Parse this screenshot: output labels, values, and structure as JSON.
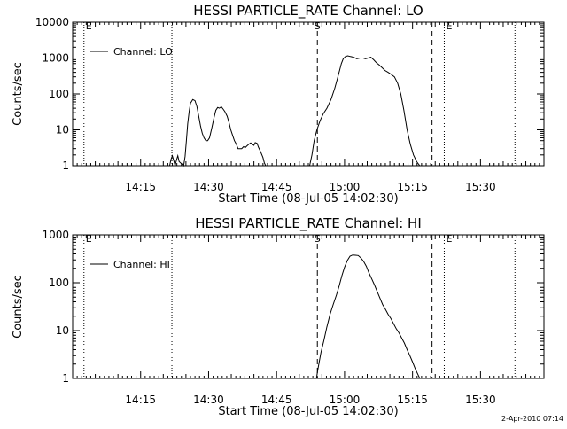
{
  "chart_data": [
    {
      "type": "line",
      "title": "HESSI PARTICLE_RATE Channel: LO",
      "xlabel": "Start Time (08-Jul-05 14:02:30)",
      "ylabel": "Counts/sec",
      "yscale": "log",
      "ylim": [
        1,
        10000
      ],
      "yticks": [
        {
          "value": 1,
          "label": "1"
        },
        {
          "value": 10,
          "label": "10"
        },
        {
          "value": 100,
          "label": "100"
        },
        {
          "value": 1000,
          "label": "1000"
        },
        {
          "value": 10000,
          "label": "10000"
        }
      ],
      "xticks": [
        {
          "minute": 15,
          "label": "14:15"
        },
        {
          "minute": 30,
          "label": "14:30"
        },
        {
          "minute": 45,
          "label": "14:45"
        },
        {
          "minute": 60,
          "label": "15:00"
        },
        {
          "minute": 75,
          "label": "15:15"
        },
        {
          "minute": 90,
          "label": "15:30"
        }
      ],
      "legend": {
        "placement": "top-left",
        "entries": [
          "Channel: LO"
        ]
      },
      "markers": {
        "dotted": [
          {
            "minute": 2.5,
            "label": "E"
          },
          {
            "minute": 21.9,
            "label": ""
          },
          {
            "minute": 82.0,
            "label": "E"
          },
          {
            "minute": 97.6,
            "label": ""
          }
        ],
        "dashed": [
          {
            "minute": 54.0,
            "label": "S"
          },
          {
            "minute": 79.3,
            "label": ""
          }
        ]
      },
      "series": [
        {
          "name": "Channel: LO",
          "x": [
            21.4,
            21.7,
            22.0,
            22.3,
            22.6,
            22.9,
            23.2,
            23.5,
            24.5,
            24.8,
            25.1,
            25.4,
            25.7,
            26.0,
            26.5,
            27.0,
            27.4,
            27.8,
            28.2,
            28.6,
            29.0,
            29.4,
            29.8,
            30.2,
            30.7,
            31.2,
            31.6,
            32.0,
            32.4,
            32.8,
            33.2,
            33.6,
            34.1,
            34.5,
            34.9,
            35.3,
            35.7,
            36.1,
            36.5,
            36.9,
            37.3,
            37.7,
            38.1,
            38.5,
            38.9,
            39.3,
            39.6,
            40.0,
            40.3,
            40.7,
            41.0,
            41.5,
            42.0,
            42.3,
            42.6,
            43.0,
            52.3,
            52.8,
            53.3,
            53.9,
            54.6,
            55.3,
            56.1,
            57.0,
            57.8,
            58.4,
            58.9,
            59.3,
            59.7,
            60.2,
            60.7,
            61.3,
            62.0,
            62.7,
            63.4,
            64.1,
            64.6,
            65.2,
            65.8,
            66.4,
            67.0,
            67.6,
            68.2,
            68.9,
            69.6,
            70.3,
            71.0,
            71.7,
            72.4,
            73.1,
            73.8,
            74.5,
            75.2,
            75.9,
            76.6,
            77.0,
            77.4,
            77.8
          ],
          "y": [
            1.0,
            1.5,
            1.9,
            1.4,
            1.0,
            1.4,
            1.9,
            1.3,
            1.0,
            1.8,
            5.0,
            15.0,
            32.0,
            55.0,
            70.0,
            65.0,
            45.0,
            25.0,
            13.0,
            8.0,
            6.0,
            5.0,
            5.0,
            6.0,
            11.0,
            22.0,
            35.0,
            42.0,
            40.0,
            44.0,
            38.0,
            32.0,
            24.0,
            16.0,
            10.0,
            7.0,
            5.0,
            4.0,
            3.0,
            3.0,
            3.0,
            3.4,
            3.2,
            3.6,
            4.0,
            4.3,
            4.0,
            3.7,
            4.4,
            4.2,
            3.3,
            2.4,
            1.7,
            1.2,
            1.0,
            1.0,
            1.0,
            2.0,
            5.0,
            10.0,
            18.0,
            28.0,
            40.0,
            70.0,
            140.0,
            260.0,
            450.0,
            700.0,
            950.0,
            1100.0,
            1150.0,
            1100.0,
            1050.0,
            950.0,
            1000.0,
            1000.0,
            950.0,
            1000.0,
            1050.0,
            900.0,
            750.0,
            650.0,
            550.0,
            450.0,
            400.0,
            350.0,
            300.0,
            200.0,
            100.0,
            35.0,
            10.0,
            4.0,
            2.0,
            1.3,
            1.0,
            1.0,
            1.0,
            1.0
          ]
        }
      ]
    },
    {
      "type": "line",
      "title": "HESSI PARTICLE_RATE Channel: HI",
      "xlabel": "Start Time (08-Jul-05 14:02:30)",
      "ylabel": "Counts/sec",
      "yscale": "log",
      "ylim": [
        1,
        1000
      ],
      "yticks": [
        {
          "value": 1,
          "label": "1"
        },
        {
          "value": 10,
          "label": "10"
        },
        {
          "value": 100,
          "label": "100"
        },
        {
          "value": 1000,
          "label": "1000"
        }
      ],
      "xticks": [
        {
          "minute": 15,
          "label": "14:15"
        },
        {
          "minute": 30,
          "label": "14:30"
        },
        {
          "minute": 45,
          "label": "14:45"
        },
        {
          "minute": 60,
          "label": "15:00"
        },
        {
          "minute": 75,
          "label": "15:15"
        },
        {
          "minute": 90,
          "label": "15:30"
        }
      ],
      "legend": {
        "placement": "top-left",
        "entries": [
          "Channel: HI"
        ]
      },
      "markers": {
        "dotted": [
          {
            "minute": 2.5,
            "label": "E"
          },
          {
            "minute": 21.9,
            "label": ""
          },
          {
            "minute": 82.0,
            "label": "E"
          },
          {
            "minute": 97.6,
            "label": ""
          }
        ],
        "dashed": [
          {
            "minute": 54.0,
            "label": "S"
          },
          {
            "minute": 79.3,
            "label": ""
          }
        ]
      },
      "series": [
        {
          "name": "Channel: HI",
          "x": [
            53.8,
            54.1,
            54.4,
            54.8,
            55.4,
            56.1,
            56.8,
            57.5,
            58.2,
            58.8,
            59.4,
            60.0,
            60.6,
            61.2,
            61.8,
            62.4,
            63.0,
            63.6,
            64.2,
            64.8,
            65.4,
            66.0,
            66.6,
            67.2,
            67.8,
            68.4,
            69.0,
            69.6,
            70.2,
            70.8,
            71.4,
            72.0,
            72.6,
            73.2,
            73.8,
            74.4,
            75.0,
            75.6,
            76.2,
            76.6
          ],
          "y": [
            1.0,
            1.5,
            2.2,
            3.5,
            6.0,
            12.0,
            22.0,
            35.0,
            55.0,
            85.0,
            140.0,
            210.0,
            290.0,
            360.0,
            380.0,
            375.0,
            370.0,
            330.0,
            280.0,
            220.0,
            160.0,
            120.0,
            90.0,
            65.0,
            48.0,
            35.0,
            28.0,
            22.0,
            18.0,
            14.0,
            11.0,
            9.0,
            7.0,
            5.5,
            4.0,
            3.0,
            2.2,
            1.6,
            1.2,
            1.0
          ]
        }
      ]
    }
  ],
  "timestamp": "2-Apr-2010 07:14"
}
